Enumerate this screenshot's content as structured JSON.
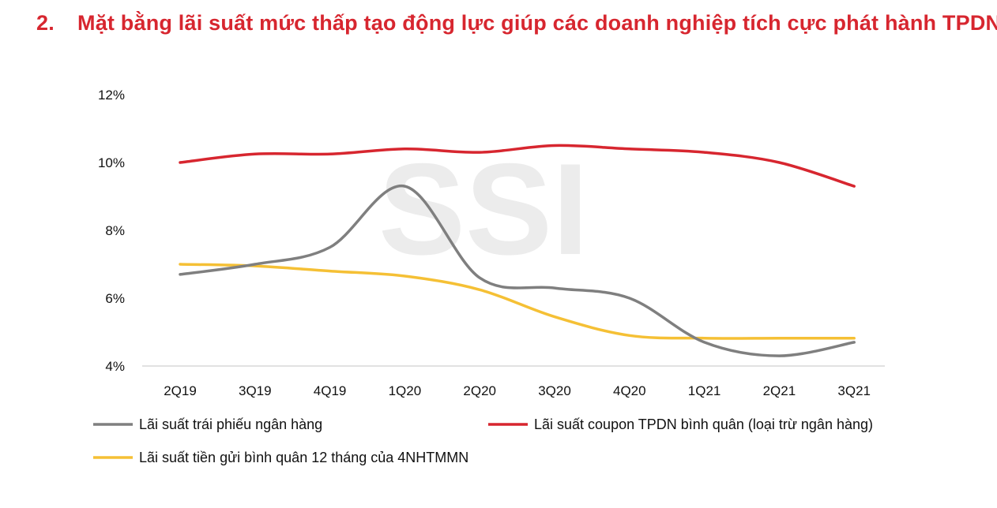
{
  "heading": {
    "number": "2.",
    "text": "Mặt bằng lãi suất mức thấp tạo động lực giúp các doanh nghiệp tích cực phát hành TPDN",
    "color": "#d7262f"
  },
  "watermark": "SSI",
  "chart_data": {
    "type": "line",
    "categories": [
      "2Q19",
      "3Q19",
      "4Q19",
      "1Q20",
      "2Q20",
      "3Q20",
      "4Q20",
      "1Q21",
      "2Q21",
      "3Q21"
    ],
    "ylim": [
      4,
      12
    ],
    "yticks": [
      4,
      6,
      8,
      10,
      12
    ],
    "ytick_labels": [
      "4%",
      "6%",
      "8%",
      "10%",
      "12%"
    ],
    "grid": false,
    "legend_position": "bottom",
    "series": [
      {
        "name": "Lãi suất trái phiếu ngân hàng",
        "color": "#7f7f7f",
        "values": [
          6.7,
          7.0,
          7.5,
          9.3,
          6.6,
          6.3,
          6.0,
          4.7,
          4.3,
          4.7
        ]
      },
      {
        "name": "Lãi suất coupon TPDN bình quân (loại trừ ngân hàng)",
        "color": "#d7262f",
        "values": [
          10.0,
          10.25,
          10.25,
          10.4,
          10.3,
          10.5,
          10.4,
          10.3,
          10.0,
          9.3
        ]
      },
      {
        "name": "Lãi suất tiền gửi bình quân 12 tháng của 4NHTMMN",
        "color": "#f5c035",
        "values": [
          7.0,
          6.95,
          6.8,
          6.65,
          6.25,
          5.45,
          4.9,
          4.82,
          4.82,
          4.82
        ]
      }
    ]
  }
}
